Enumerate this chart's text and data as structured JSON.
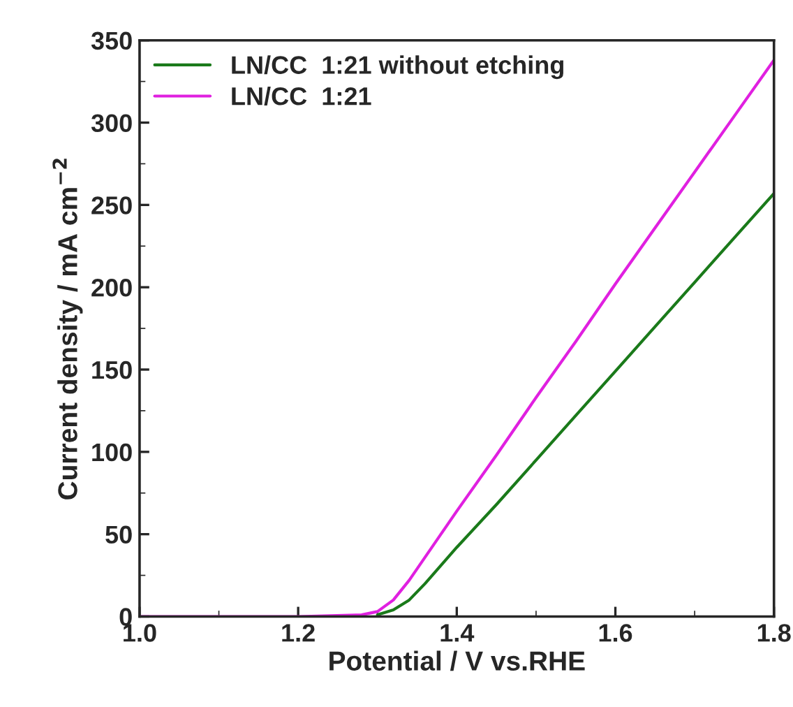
{
  "chart_data": {
    "type": "line",
    "xlabel": "Potential / V vs.RHE",
    "ylabel": "Current density / mA cm$^{−2}$",
    "xlim": [
      1.0,
      1.8
    ],
    "xticks": [
      {
        "value": 1.0,
        "label": "1.0"
      },
      {
        "value": 1.2,
        "label": "1.2"
      },
      {
        "value": 1.4,
        "label": "1.4"
      },
      {
        "value": 1.6,
        "label": "1.6"
      },
      {
        "value": 1.8,
        "label": "1.8"
      }
    ],
    "ylim": [
      0,
      350
    ],
    "yticks": [
      0,
      50,
      100,
      150,
      200,
      250,
      300,
      350
    ],
    "grid": false,
    "legend": "top left",
    "series": [
      {
        "name": "LN/CC  1:21 without etching",
        "color": "#1a7a1a",
        "x": [
          1.3,
          1.32,
          1.34,
          1.36,
          1.38,
          1.4,
          1.45,
          1.5,
          1.55,
          1.6,
          1.65,
          1.7,
          1.75,
          1.8
        ],
        "values": [
          1,
          4,
          10,
          20,
          31,
          42,
          68,
          95,
          122,
          149,
          176,
          203,
          230,
          257
        ]
      },
      {
        "name": "LN/CC  1:21",
        "color": "#e020e0",
        "x": [
          1.0,
          1.1,
          1.2,
          1.28,
          1.3,
          1.32,
          1.34,
          1.36,
          1.38,
          1.4,
          1.45,
          1.5,
          1.55,
          1.6,
          1.65,
          1.7,
          1.75,
          1.8
        ],
        "values": [
          0,
          0,
          0,
          1,
          3,
          10,
          22,
          36,
          50,
          64,
          98,
          133,
          167,
          202,
          236,
          270,
          304,
          338
        ]
      }
    ]
  }
}
